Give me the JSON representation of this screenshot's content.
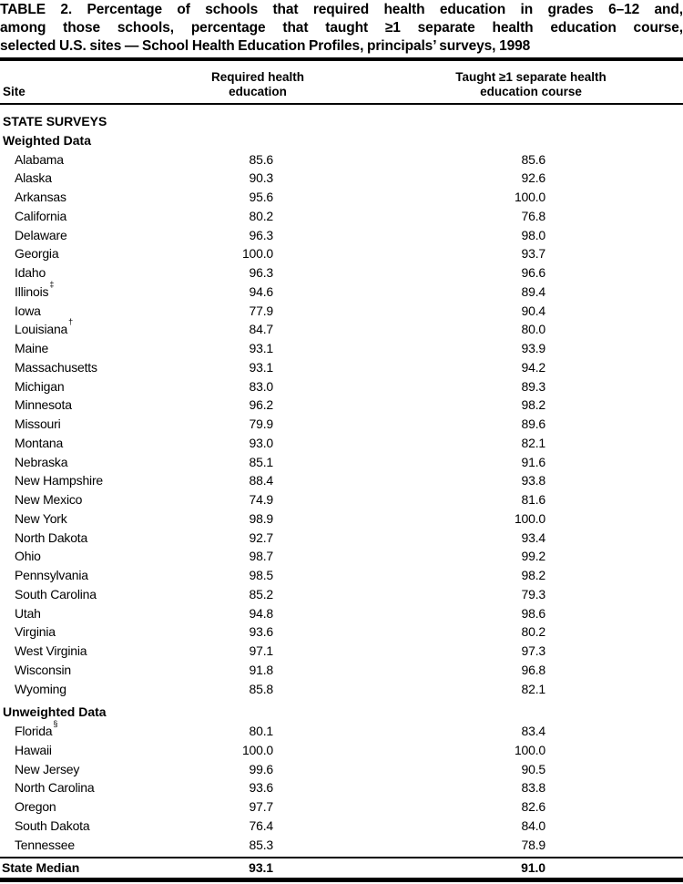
{
  "title": {
    "lines": [
      "TABLE 2. Percentage of schools that required health education in grades 6–12 and,",
      "among those schools, percentage that taught ≥1 separate health education course,",
      "selected U.S. sites — School Health Education Profiles, principals’ surveys, 1998"
    ]
  },
  "columns": {
    "site": "Site",
    "required": {
      "line1": "Required health",
      "line2": "education"
    },
    "taught": {
      "line1": "Taught ≥1 separate health",
      "line2": "education course"
    }
  },
  "rows": [
    {
      "type": "section",
      "label": "STATE SURVEYS"
    },
    {
      "type": "subsection",
      "label": "Weighted Data"
    },
    {
      "type": "data",
      "label": "Alabama",
      "required": "85.6",
      "taught": "85.6"
    },
    {
      "type": "data",
      "label": "Alaska",
      "required": "90.3",
      "taught": "92.6"
    },
    {
      "type": "data",
      "label": "Arkansas",
      "required": "95.6",
      "taught": "100.0"
    },
    {
      "type": "data",
      "label": "California",
      "required": "80.2",
      "taught": "76.8"
    },
    {
      "type": "data",
      "label": "Delaware",
      "required": "96.3",
      "taught": "98.0"
    },
    {
      "type": "data",
      "label": "Georgia",
      "required": "100.0",
      "taught": "93.7"
    },
    {
      "type": "data",
      "label": "Idaho",
      "required": "96.3",
      "taught": "96.6"
    },
    {
      "type": "data",
      "label": "Illinois",
      "sup": "‡",
      "required": "94.6",
      "taught": "89.4"
    },
    {
      "type": "data",
      "label": "Iowa",
      "required": "77.9",
      "taught": "90.4"
    },
    {
      "type": "data",
      "label": "Louisiana",
      "sup": "†",
      "required": "84.7",
      "taught": "80.0"
    },
    {
      "type": "data",
      "label": "Maine",
      "required": "93.1",
      "taught": "93.9"
    },
    {
      "type": "data",
      "label": "Massachusetts",
      "required": "93.1",
      "taught": "94.2"
    },
    {
      "type": "data",
      "label": "Michigan",
      "required": "83.0",
      "taught": "89.3"
    },
    {
      "type": "data",
      "label": "Minnesota",
      "required": "96.2",
      "taught": "98.2"
    },
    {
      "type": "data",
      "label": "Missouri",
      "required": "79.9",
      "taught": "89.6"
    },
    {
      "type": "data",
      "label": "Montana",
      "required": "93.0",
      "taught": "82.1"
    },
    {
      "type": "data",
      "label": "Nebraska",
      "required": "85.1",
      "taught": "91.6"
    },
    {
      "type": "data",
      "label": "New Hampshire",
      "required": "88.4",
      "taught": "93.8"
    },
    {
      "type": "data",
      "label": "New Mexico",
      "required": "74.9",
      "taught": "81.6"
    },
    {
      "type": "data",
      "label": "New York",
      "required": "98.9",
      "taught": "100.0"
    },
    {
      "type": "data",
      "label": "North Dakota",
      "required": "92.7",
      "taught": "93.4"
    },
    {
      "type": "data",
      "label": "Ohio",
      "required": "98.7",
      "taught": "99.2"
    },
    {
      "type": "data",
      "label": "Pennsylvania",
      "required": "98.5",
      "taught": "98.2"
    },
    {
      "type": "data",
      "label": "South Carolina",
      "required": "85.2",
      "taught": "79.3"
    },
    {
      "type": "data",
      "label": "Utah",
      "required": "94.8",
      "taught": "98.6"
    },
    {
      "type": "data",
      "label": "Virginia",
      "required": "93.6",
      "taught": "80.2"
    },
    {
      "type": "data",
      "label": "West Virginia",
      "required": "97.1",
      "taught": "97.3"
    },
    {
      "type": "data",
      "label": "Wisconsin",
      "required": "91.8",
      "taught": "96.8"
    },
    {
      "type": "data",
      "label": "Wyoming",
      "required": "85.8",
      "taught": "82.1"
    },
    {
      "type": "subsection",
      "label": "Unweighted Data",
      "spaced": true
    },
    {
      "type": "data",
      "label": "Florida",
      "sup": "§",
      "required": "80.1",
      "taught": "83.4"
    },
    {
      "type": "data",
      "label": "Hawaii",
      "required": "100.0",
      "taught": "100.0"
    },
    {
      "type": "data",
      "label": "New Jersey",
      "required": "99.6",
      "taught": "90.5"
    },
    {
      "type": "data",
      "label": "North Carolina",
      "required": "93.6",
      "taught": "83.8"
    },
    {
      "type": "data",
      "label": "Oregon",
      "required": "97.7",
      "taught": "82.6"
    },
    {
      "type": "data",
      "label": "South Dakota",
      "required": "76.4",
      "taught": "84.0"
    },
    {
      "type": "data",
      "label": "Tennessee",
      "required": "85.3",
      "taught": "78.9"
    }
  ],
  "median": {
    "label": "State Median",
    "required": "93.1",
    "taught": "91.0"
  },
  "colors": {
    "text": "#000000",
    "background": "#ffffff",
    "rule": "#000000"
  }
}
